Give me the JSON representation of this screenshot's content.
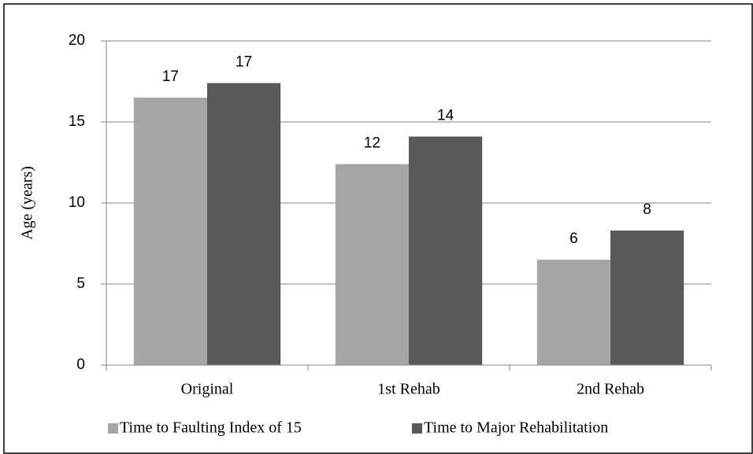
{
  "chart_data": {
    "type": "bar",
    "y_label": "Age (years)",
    "categories": [
      "Original",
      "1st Rehab",
      "2nd Rehab"
    ],
    "series": [
      {
        "name": "Time to Faulting Index of 15",
        "color": "#a6a6a6",
        "values": [
          16.5,
          12.4,
          6.5
        ],
        "value_labels": [
          "17",
          "12",
          "6"
        ]
      },
      {
        "name": "Time to Major Rehabilitation",
        "color": "#595959",
        "values": [
          17.4,
          14.1,
          8.3
        ],
        "value_labels": [
          "17",
          "14",
          "8"
        ]
      }
    ],
    "ylim": [
      0,
      20
    ],
    "yticks": [
      0,
      5,
      10,
      15,
      20
    ],
    "grid": true,
    "legend": "bottom"
  }
}
